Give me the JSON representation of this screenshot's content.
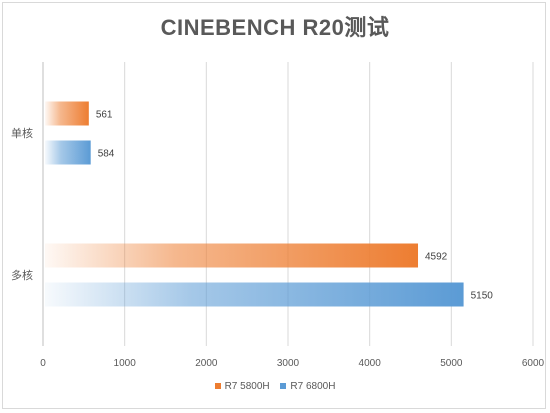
{
  "chart_data": {
    "type": "bar",
    "orientation": "horizontal",
    "title": "CINEBENCH R20测试",
    "categories": [
      "单核",
      "多核"
    ],
    "series": [
      {
        "name": "R7 5800H",
        "values": [
          561,
          4592
        ],
        "color": "#ed7d31"
      },
      {
        "name": "R7 6800H",
        "values": [
          584,
          5150
        ],
        "color": "#5b9bd5"
      }
    ],
    "xlim": [
      0,
      6000
    ],
    "xticks": [
      "0",
      "1000",
      "2000",
      "3000",
      "4000",
      "5000",
      "6000"
    ],
    "grid": true,
    "legend_position": "bottom"
  }
}
